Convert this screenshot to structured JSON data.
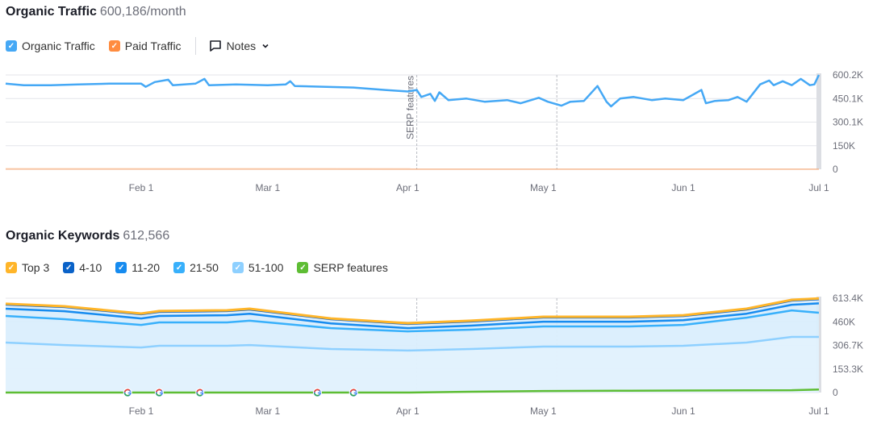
{
  "traffic": {
    "title": "Organic Traffic",
    "subtitle": "600,186/month",
    "legend": [
      {
        "label": "Organic Traffic",
        "color": "#45a8f5",
        "checked": true
      },
      {
        "label": "Paid Traffic",
        "color": "#ff8c3f",
        "checked": true
      }
    ],
    "notes_label": "Notes"
  },
  "keywords": {
    "title": "Organic Keywords",
    "subtitle": "612,566",
    "legend": [
      {
        "label": "Top 3",
        "color": "#ffb529",
        "checked": true
      },
      {
        "label": "4-10",
        "color": "#0a62c8",
        "checked": true
      },
      {
        "label": "11-20",
        "color": "#168bef",
        "checked": true
      },
      {
        "label": "21-50",
        "color": "#38b0fb",
        "checked": true
      },
      {
        "label": "51-100",
        "color": "#8ed0ff",
        "checked": true
      },
      {
        "label": "SERP features",
        "color": "#5ebd34",
        "checked": true
      }
    ]
  },
  "chart_data": [
    {
      "type": "line",
      "x_ticks": [
        "Feb 1",
        "Mar 1",
        "Apr 1",
        "May 1",
        "Jun 1",
        "Jul 1"
      ],
      "y_ticks": [
        "600.2K",
        "450.1K",
        "300.1K",
        "150K",
        "0"
      ],
      "ylim": [
        0,
        600200
      ],
      "grid": true,
      "annotations": [
        {
          "date": "04-03",
          "label": "SERP features"
        },
        {
          "date": "05-04",
          "label": ""
        }
      ],
      "series": [
        {
          "name": "Organic Traffic",
          "color": "#45a8f5",
          "x": [
            "01-02",
            "01-06",
            "01-12",
            "01-18",
            "01-25",
            "02-01",
            "02-02",
            "02-04",
            "02-07",
            "02-08",
            "02-13",
            "02-15",
            "02-16",
            "02-22",
            "03-01",
            "03-05",
            "03-06",
            "03-07",
            "03-14",
            "03-20",
            "03-27",
            "04-01",
            "04-03",
            "04-04",
            "04-06",
            "04-07",
            "04-08",
            "04-10",
            "04-14",
            "04-18",
            "04-23",
            "04-26",
            "04-30",
            "05-02",
            "05-05",
            "05-07",
            "05-10",
            "05-13",
            "05-15",
            "05-16",
            "05-18",
            "05-21",
            "05-25",
            "05-28",
            "06-01",
            "06-05",
            "06-06",
            "06-08",
            "06-11",
            "06-13",
            "06-15",
            "06-18",
            "06-20",
            "06-21",
            "06-23",
            "06-25",
            "06-27",
            "06-29",
            "06-30",
            "07-01"
          ],
          "y": [
            545000,
            535000,
            535000,
            540000,
            545000,
            545000,
            525000,
            555000,
            570000,
            535000,
            545000,
            575000,
            535000,
            540000,
            535000,
            540000,
            560000,
            530000,
            525000,
            520000,
            505000,
            495000,
            505000,
            460000,
            480000,
            435000,
            490000,
            440000,
            450000,
            430000,
            440000,
            420000,
            455000,
            430000,
            405000,
            430000,
            435000,
            530000,
            430000,
            400000,
            450000,
            460000,
            440000,
            450000,
            440000,
            505000,
            420000,
            435000,
            440000,
            460000,
            430000,
            540000,
            565000,
            535000,
            560000,
            535000,
            575000,
            535000,
            540000,
            600186
          ]
        },
        {
          "name": "Paid Traffic",
          "color": "#ff8c3f",
          "x": [
            "01-02",
            "07-01"
          ],
          "y": [
            2000,
            1000
          ]
        }
      ]
    },
    {
      "type": "area",
      "x_ticks": [
        "Feb 1",
        "Mar 1",
        "Apr 1",
        "May 1",
        "Jun 1",
        "Jul 1"
      ],
      "y_ticks": [
        "613.4K",
        "460K",
        "306.7K",
        "153.3K",
        "0"
      ],
      "ylim": [
        0,
        613400
      ],
      "grid": true,
      "annotations": [
        {
          "date": "04-03",
          "label": ""
        },
        {
          "date": "05-04",
          "label": ""
        }
      ],
      "google_updates": [
        "01-29",
        "02-05",
        "02-14",
        "03-12",
        "03-20"
      ],
      "x": [
        "01-02",
        "01-15",
        "02-01",
        "02-05",
        "02-20",
        "02-25",
        "03-15",
        "04-01",
        "04-15",
        "05-01",
        "05-20",
        "06-01",
        "06-15",
        "06-25",
        "07-01"
      ],
      "series": [
        {
          "name": "Top 3",
          "color": "#ffb529",
          "y": [
            577000,
            561000,
            514000,
            530000,
            535000,
            545000,
            482000,
            451000,
            467000,
            493000,
            493000,
            503000,
            545000,
            603000,
            612566
          ]
        },
        {
          "name": "4-10",
          "color": "#0a62c8",
          "y": [
            572000,
            556000,
            509000,
            525000,
            530000,
            540000,
            477000,
            446000,
            462000,
            488000,
            488000,
            498000,
            540000,
            598000,
            607000
          ]
        },
        {
          "name": "11-20",
          "color": "#168bef",
          "y": [
            545000,
            529000,
            482000,
            498000,
            503000,
            513000,
            450000,
            419000,
            435000,
            461000,
            461000,
            471000,
            513000,
            571000,
            580000
          ]
        },
        {
          "name": "21-50",
          "color": "#38b0fb",
          "y": [
            498000,
            477000,
            440000,
            456000,
            456000,
            467000,
            419000,
            398000,
            409000,
            430000,
            430000,
            440000,
            487000,
            534000,
            519000
          ]
        },
        {
          "name": "51-100",
          "color": "#8ed0ff",
          "y": [
            325000,
            309000,
            293000,
            304000,
            304000,
            309000,
            283000,
            273000,
            283000,
            299000,
            299000,
            304000,
            325000,
            362000,
            362000
          ]
        },
        {
          "name": "SERP features",
          "color": "#5ebd34",
          "y": [
            0,
            0,
            0,
            0,
            0,
            0,
            0,
            0,
            5000,
            10000,
            12000,
            13000,
            14000,
            15000,
            20000
          ]
        }
      ]
    }
  ]
}
